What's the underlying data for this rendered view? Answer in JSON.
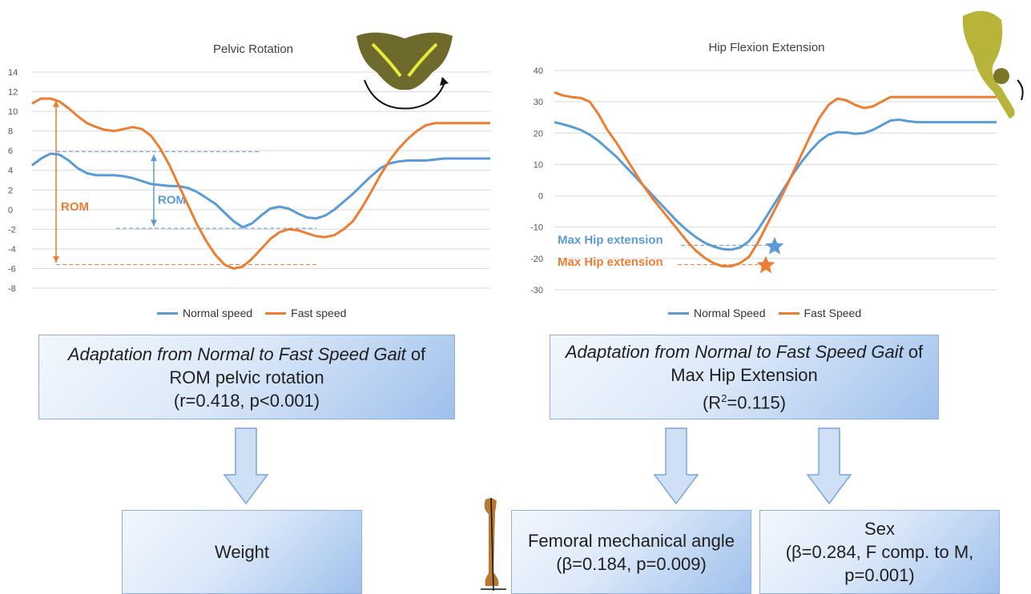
{
  "chart_data": [
    {
      "type": "line",
      "title": "Pelvic Rotation",
      "ylim": [
        -8,
        14
      ],
      "yticks": [
        "14",
        "12",
        "10",
        "8",
        "6",
        "4",
        "2",
        "0",
        "-2",
        "-4",
        "-6",
        "-8"
      ],
      "grid": true,
      "legend_position": "bottom",
      "x": [
        0,
        2,
        4,
        6,
        8,
        10,
        12,
        14,
        16,
        18,
        20,
        22,
        24,
        26,
        28,
        30,
        32,
        34,
        36,
        38,
        40,
        42,
        44,
        46,
        48,
        50,
        52,
        54,
        56,
        58,
        60,
        62,
        64,
        66,
        68,
        70,
        72,
        74,
        76,
        78,
        80,
        82,
        84,
        86,
        88,
        90,
        92,
        94,
        96,
        98,
        100
      ],
      "series": [
        {
          "name": "Normal speed",
          "color": "#5b9bd5",
          "values": [
            4.5,
            5.2,
            5.7,
            5.6,
            5.0,
            4.2,
            3.7,
            3.5,
            3.5,
            3.5,
            3.4,
            3.2,
            2.9,
            2.6,
            2.5,
            2.4,
            2.4,
            2.2,
            1.8,
            1.2,
            0.6,
            -0.3,
            -1.2,
            -1.8,
            -1.4,
            -0.6,
            0.1,
            0.3,
            0.1,
            -0.4,
            -0.8,
            -0.9,
            -0.6,
            0.0,
            0.8,
            1.6,
            2.5,
            3.4,
            4.2,
            4.7,
            4.9,
            5.0,
            5.0,
            5.0,
            5.1,
            5.2,
            5.2,
            5.2,
            5.2,
            5.2,
            5.2
          ]
        },
        {
          "name": "Fast speed",
          "color": "#ed7d31",
          "values": [
            10.8,
            11.3,
            11.3,
            11.0,
            10.3,
            9.5,
            8.8,
            8.4,
            8.1,
            8.0,
            8.2,
            8.4,
            8.2,
            7.5,
            6.2,
            4.5,
            2.5,
            0.5,
            -1.5,
            -3.2,
            -4.6,
            -5.6,
            -6.0,
            -5.8,
            -5.0,
            -4.0,
            -3.0,
            -2.3,
            -2.0,
            -2.1,
            -2.4,
            -2.7,
            -2.8,
            -2.6,
            -2.0,
            -1.2,
            0.2,
            1.8,
            3.5,
            5.0,
            6.2,
            7.2,
            8.0,
            8.6,
            8.8,
            8.8,
            8.8,
            8.8,
            8.8,
            8.8,
            8.8
          ]
        }
      ],
      "annotations": {
        "rom_orange": "ROM",
        "rom_blue": "ROM"
      }
    },
    {
      "type": "line",
      "title": "Hip Flexion Extension",
      "ylim": [
        -30,
        40
      ],
      "yticks": [
        "40",
        "30",
        "20",
        "10",
        "0",
        "-10",
        "-20",
        "-30"
      ],
      "grid": true,
      "legend_position": "bottom",
      "x": [
        0,
        2,
        4,
        6,
        8,
        10,
        12,
        14,
        16,
        18,
        20,
        22,
        24,
        26,
        28,
        30,
        32,
        34,
        36,
        38,
        40,
        42,
        44,
        46,
        48,
        50,
        52,
        54,
        56,
        58,
        60,
        62,
        64,
        66,
        68,
        70,
        72,
        74,
        76,
        78,
        80,
        82,
        84,
        86,
        88,
        90,
        92,
        94,
        96,
        98,
        100
      ],
      "series": [
        {
          "name": "Normal Speed",
          "color": "#5b9bd5",
          "values": [
            23.5,
            22.8,
            22.0,
            21.0,
            19.5,
            17.5,
            15.0,
            12.5,
            9.5,
            6.5,
            3.5,
            0.5,
            -2.5,
            -5.5,
            -8.5,
            -11.0,
            -13.2,
            -15.0,
            -16.2,
            -17.0,
            -17.2,
            -16.5,
            -14.5,
            -11.0,
            -6.5,
            -2.0,
            2.5,
            7.0,
            11.0,
            14.5,
            17.5,
            19.5,
            20.3,
            20.2,
            19.8,
            20.0,
            21.0,
            22.5,
            24.0,
            24.3,
            23.8,
            23.5,
            23.5,
            23.5,
            23.5,
            23.5,
            23.5,
            23.5,
            23.5,
            23.5,
            23.5
          ]
        },
        {
          "name": "Fast Speed",
          "color": "#ed7d31",
          "values": [
            33.0,
            32.0,
            31.5,
            31.2,
            30.0,
            26.0,
            21.0,
            17.0,
            12.5,
            8.0,
            3.5,
            -0.5,
            -4.0,
            -7.5,
            -11.0,
            -14.5,
            -17.5,
            -19.8,
            -21.5,
            -22.5,
            -22.5,
            -21.5,
            -19.5,
            -15.0,
            -9.5,
            -4.0,
            1.5,
            7.5,
            13.5,
            19.5,
            25.0,
            29.0,
            31.0,
            30.5,
            29.0,
            28.0,
            28.5,
            30.0,
            31.5,
            31.5,
            31.5,
            31.5,
            31.5,
            31.5,
            31.5,
            31.5,
            31.5,
            31.5,
            31.5,
            31.5,
            31.5
          ]
        }
      ],
      "annotations": {
        "max_blue": "Max Hip extension",
        "max_orange": "Max Hip extension"
      }
    }
  ],
  "boxes": {
    "left_top": {
      "italic": "Adaptation from Normal to Fast Speed Gait",
      "suffix": " of",
      "line2": "ROM pelvic rotation",
      "line3": "(r=0.418, p<0.001)"
    },
    "right_top": {
      "italic": "Adaptation from Normal to Fast Speed Gait",
      "suffix": " of",
      "line2": "Max Hip Extension",
      "line3_pre": "(R",
      "line3_sup": "2",
      "line3_post": "=0.115)"
    },
    "weight": {
      "text": "Weight"
    },
    "femoral": {
      "line1": "Femoral mechanical angle",
      "line2": "(β=0.184, p=0.009)"
    },
    "sex": {
      "line1": "Sex",
      "line2": "(β=0.284, F comp. to M,",
      "line3": "p=0.001)"
    }
  },
  "colors": {
    "normal": "#5b9bd5",
    "fast": "#ed7d31",
    "arrow_fill": "#cfe0f5",
    "arrow_stroke": "#7aa6d9"
  }
}
